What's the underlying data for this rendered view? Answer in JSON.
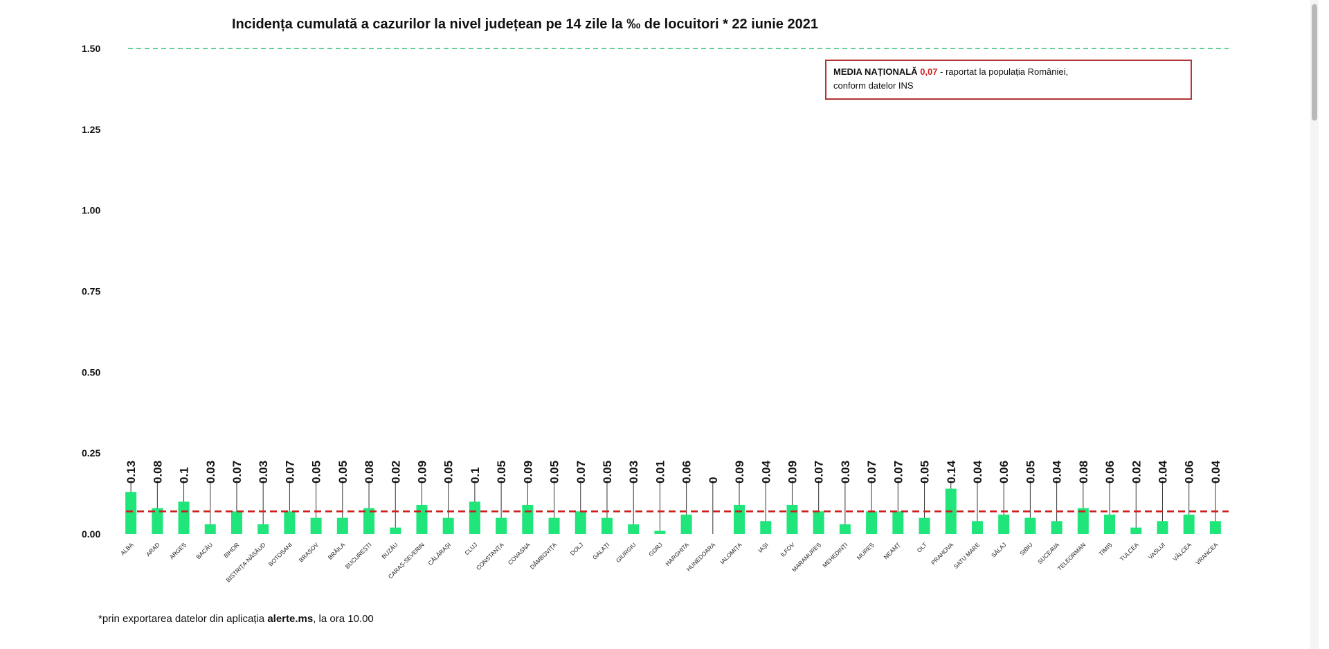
{
  "chart_data": {
    "type": "bar",
    "title": "Incidența cumulată a cazurilor la nivel județean pe 14 zile la ‰ de locuitori *  22 iunie 2021",
    "xlabel": "",
    "ylabel": "",
    "ylim": [
      0,
      1.5
    ],
    "yticks": [
      "0.00",
      "0.25",
      "0.50",
      "0.75",
      "1.00",
      "1.25",
      "1.50"
    ],
    "grid": false,
    "categories": [
      "ALBA",
      "ARAD",
      "ARGEȘ",
      "BACĂU",
      "BIHOR",
      "BISTRIȚA-NĂSĂUD",
      "BOTOȘANI",
      "BRAȘOV",
      "BRĂILA",
      "BUCUREȘTI",
      "BUZĂU",
      "CARAȘ-SEVERIN",
      "CĂLĂRAȘI",
      "CLUJ",
      "CONSTANȚA",
      "COVASNA",
      "DÂMBOVIȚA",
      "DOLJ",
      "GALAȚI",
      "GIURGIU",
      "GORJ",
      "HARGHITA",
      "HUNEDOARA",
      "IALOMIȚA",
      "IAȘI",
      "ILFOV",
      "MARAMUREȘ",
      "MEHEDINȚI",
      "MUREȘ",
      "NEAMȚ",
      "OLT",
      "PRAHOVA",
      "SATU MARE",
      "SĂLAJ",
      "SIBIU",
      "SUCEAVA",
      "TELEORMAN",
      "TIMIȘ",
      "TULCEA",
      "VASLUI",
      "VÂLCEA",
      "VRANCEA"
    ],
    "values": [
      0.13,
      0.08,
      0.1,
      0.03,
      0.07,
      0.03,
      0.07,
      0.05,
      0.05,
      0.08,
      0.02,
      0.09,
      0.05,
      0.1,
      0.05,
      0.09,
      0.05,
      0.07,
      0.05,
      0.03,
      0.01,
      0.06,
      0,
      0.09,
      0.04,
      0.09,
      0.07,
      0.03,
      0.07,
      0.07,
      0.05,
      0.14,
      0.04,
      0.06,
      0.05,
      0.04,
      0.08,
      0.06,
      0.02,
      0.04,
      0.06,
      0.04
    ],
    "value_labels": [
      "0.13",
      "0.08",
      "0.1",
      "0.03",
      "0.07",
      "0.03",
      "0.07",
      "0.05",
      "0.05",
      "0.08",
      "0.02",
      "0.09",
      "0.05",
      "0.1",
      "0.05",
      "0.09",
      "0.05",
      "0.07",
      "0.05",
      "0.03",
      "0.01",
      "0.06",
      "0",
      "0.09",
      "0.04",
      "0.09",
      "0.07",
      "0.03",
      "0.07",
      "0.07",
      "0.05",
      "0.14",
      "0.04",
      "0.06",
      "0.05",
      "0.04",
      "0.08",
      "0.06",
      "0.02",
      "0.04",
      "0.06",
      "0.04"
    ],
    "reference_lines": [
      {
        "value": 1.5,
        "style": "dashed",
        "color": "#2fbf7a"
      },
      {
        "value": 0.07,
        "style": "dashed",
        "color": "#cc1f1f"
      }
    ],
    "bar_color": "#1fe57a"
  },
  "legend": {
    "label_bold": "MEDIA NAȚIONALĂ",
    "value": "0,07",
    "text_rest": " - raportat la populația României,",
    "text_line2": "conform datelor INS"
  },
  "footnote": {
    "prefix": "*prin exportarea datelor din aplicația ",
    "bold": "alerte.ms",
    "suffix": ", la ora 10.00"
  }
}
